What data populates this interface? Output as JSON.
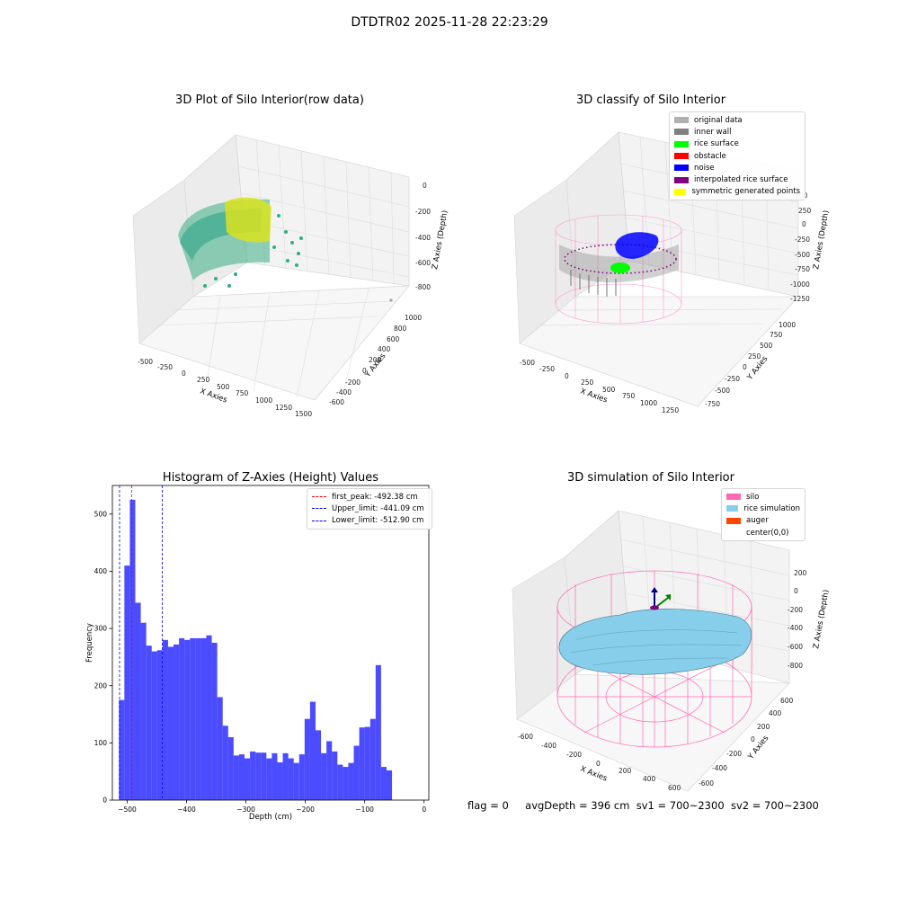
{
  "suptitle": "DTDTR02 2025-11-28 22:23:29",
  "footer": {
    "flag": "flag = 0",
    "avg_depth": "avgDepth = 396 cm",
    "sv1": "sv1 = 700~2300",
    "sv2": "sv2 = 700~2300"
  },
  "plots": {
    "raw": {
      "title": "3D Plot of Silo Interior(row data)",
      "xlabel": "X Axies",
      "ylabel": "Y Axies",
      "zlabel": "Z Axies (Depth)",
      "xticks": [
        "-500",
        "-250",
        "0",
        "250",
        "500",
        "750",
        "1000",
        "1250",
        "1500"
      ],
      "yticks": [
        "-600",
        "-400",
        "-200",
        "0",
        "200",
        "400",
        "600",
        "800",
        "1000"
      ],
      "zticks": [
        "0",
        "-200",
        "-400",
        "-600",
        "-800"
      ]
    },
    "classify": {
      "title": "3D classify of Silo Interior",
      "xlabel": "X Axies",
      "ylabel": "Y Axies",
      "zlabel": "Z Axies (Depth)",
      "xticks": [
        "-500",
        "-250",
        "0",
        "250",
        "500",
        "750",
        "1000",
        "1250"
      ],
      "yticks": [
        "-750",
        "-500",
        "-250",
        "0",
        "250",
        "500",
        "750",
        "1000"
      ],
      "zticks": [
        "500",
        "250",
        "0",
        "-250",
        "-500",
        "-750",
        "-1000",
        "-1250"
      ],
      "legend": [
        {
          "label": "original data",
          "color": "#b0b0b0"
        },
        {
          "label": "inner wall",
          "color": "#808080"
        },
        {
          "label": "rice surface",
          "color": "#00ff00"
        },
        {
          "label": "obstacle",
          "color": "#ff0000"
        },
        {
          "label": "noise",
          "color": "#0000ff"
        },
        {
          "label": "interpolated rice surface",
          "color": "#800080"
        },
        {
          "label": "symmetric generated points",
          "color": "#ffff00"
        }
      ]
    },
    "simulation": {
      "title": "3D simulation of Silo Interior",
      "xlabel": "X Axies",
      "ylabel": "Y Axies",
      "zlabel": "Z Axies (Depth)",
      "xticks": [
        "-600",
        "-400",
        "-200",
        "0",
        "200",
        "400",
        "600"
      ],
      "yticks": [
        "-600",
        "-400",
        "-200",
        "0",
        "200",
        "400",
        "600"
      ],
      "zticks": [
        "200",
        "0",
        "-200",
        "-400",
        "-600",
        "-800"
      ],
      "legend": [
        {
          "label": "silo",
          "color": "#ff69b4"
        },
        {
          "label": "rice simulation",
          "color": "#87ceeb"
        },
        {
          "label": "auger",
          "color": "#ff4500"
        },
        {
          "label": "center(0,0)",
          "color": "#ffffff"
        }
      ]
    }
  },
  "chart_data": {
    "type": "bar",
    "title": "Histogram of Z-Axies (Height) Values",
    "xlabel": "Depth (cm)",
    "ylabel": "Frequency",
    "xlim": [
      -525,
      8
    ],
    "ylim": [
      0,
      550
    ],
    "xticks": [
      -500,
      -400,
      -300,
      -200,
      -100,
      0
    ],
    "yticks": [
      0,
      100,
      200,
      300,
      400,
      500
    ],
    "bin_start": -514,
    "bin_width": 9.2,
    "values": [
      175,
      410,
      525,
      345,
      310,
      270,
      260,
      262,
      280,
      268,
      272,
      283,
      280,
      283,
      283,
      283,
      288,
      275,
      180,
      130,
      110,
      78,
      80,
      73,
      85,
      83,
      83,
      73,
      82,
      66,
      82,
      73,
      65,
      80,
      142,
      172,
      122,
      82,
      103,
      85,
      62,
      58,
      65,
      95,
      127,
      128,
      142,
      236,
      58,
      52
    ],
    "bar_color": "#0000ff",
    "vlines": [
      {
        "label": "first_peak: -492.38 cm",
        "x": -492.38,
        "color": "#ff0000"
      },
      {
        "label": "Upper_limit: -441.09 cm",
        "x": -441.09,
        "color": "#0000ff"
      },
      {
        "label": "Lower_limit: -512.90 cm",
        "x": -512.9,
        "color": "#0000ff"
      }
    ],
    "legend_position": "upper right"
  }
}
